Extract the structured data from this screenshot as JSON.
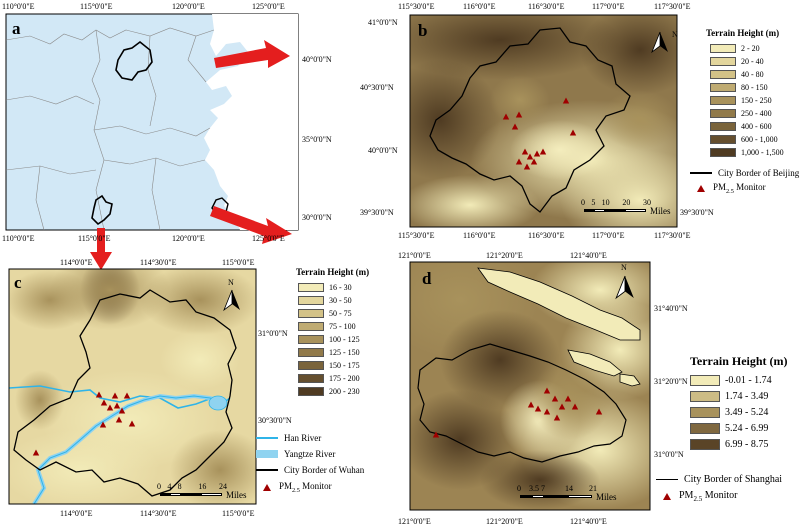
{
  "panel_a": {
    "letter": "a",
    "top_ticks": [
      "110°0'0\"E",
      "115°0'0\"E",
      "120°0'0\"E",
      "125°0'0\"E"
    ],
    "bottom_ticks": [
      "110°0'0\"E",
      "115°0'0\"E",
      "120°0'0\"E",
      "125°0'0\"E"
    ],
    "right_ticks": [
      "40°0'0\"N",
      "35°0'0\"N",
      "30°0'0\"N"
    ]
  },
  "panel_b": {
    "letter": "b",
    "top_ticks": [
      "115°30'0\"E",
      "116°0'0\"E",
      "116°30'0\"E",
      "117°0'0\"E",
      "117°30'0\"E"
    ],
    "bottom_ticks": [
      "115°30'0\"E",
      "116°0'0\"E",
      "116°30'0\"E",
      "117°0'0\"E",
      "117°30'0\"E"
    ],
    "left_ticks": [
      "41°0'0\"N",
      "40°30'0\"N",
      "40°0'0\"N",
      "39°30'0\"N"
    ],
    "right_tick": "39°30'0\"N",
    "legend_title": "Terrain Height (m)",
    "legend": [
      "2 - 20",
      "20 - 40",
      "40 - 80",
      "80 - 150",
      "150 - 250",
      "250 - 400",
      "400 - 600",
      "600 - 1,000",
      "1,000 - 1,500"
    ],
    "legend_colors": [
      "#f2ebb8",
      "#e3d69d",
      "#d3c287",
      "#bfab72",
      "#a8925c",
      "#917a4a",
      "#7a643b",
      "#654f2f",
      "#4f3b22"
    ],
    "city_border": "City Border of Beijing",
    "monitor": "PM2.5 Monitor",
    "scale_labels": [
      "0",
      "5",
      "10",
      "20",
      "30"
    ],
    "scale_unit": "Miles",
    "north": "N"
  },
  "panel_c": {
    "letter": "c",
    "top_ticks": [
      "114°0'0\"E",
      "114°30'0\"E",
      "115°0'0\"E"
    ],
    "bottom_ticks": [
      "114°0'0\"E",
      "114°30'0\"E",
      "115°0'0\"E"
    ],
    "right_ticks": [
      "31°0'0\"N",
      "30°30'0\"N"
    ],
    "legend_title": "Terrain Height (m)",
    "legend": [
      "16 - 30",
      "30 - 50",
      "50 - 75",
      "75 - 100",
      "100 - 125",
      "125 - 150",
      "150 - 175",
      "175 - 200",
      "200 - 230"
    ],
    "legend_colors": [
      "#f2ebb8",
      "#e3d69d",
      "#d3c287",
      "#bfab72",
      "#a8925c",
      "#917a4a",
      "#7a643b",
      "#654f2f",
      "#4f3b22"
    ],
    "han_river": "Han River",
    "yangtze_river": "Yangtze River",
    "city_border": "City Border of Wuhan",
    "monitor": "PM2.5 Monitor",
    "scale_labels": [
      "0",
      "4",
      "8",
      "16",
      "24"
    ],
    "scale_unit": "Miles",
    "north": "N"
  },
  "panel_d": {
    "letter": "d",
    "top_ticks": [
      "121°0'0\"E",
      "121°20'0\"E",
      "121°40'0\"E"
    ],
    "bottom_ticks": [
      "121°0'0\"E",
      "121°20'0\"E",
      "121°40'0\"E"
    ],
    "right_ticks": [
      "31°40'0\"N",
      "31°20'0\"N",
      "31°0'0\"N"
    ],
    "legend_title": "Terrain Height (m)",
    "legend": [
      "-0.01 - 1.74",
      "1.74 - 3.49",
      "3.49 - 5.24",
      "5.24 - 6.99",
      "6.99 - 8.75"
    ],
    "legend_colors": [
      "#f2ebb8",
      "#cdbc85",
      "#a8925c",
      "#7f6840",
      "#5a4427"
    ],
    "city_border": "City Border of Shanghai",
    "monitor": "PM2.5 Monitor",
    "scale_labels": [
      "0",
      "3.5",
      "7",
      "14",
      "21"
    ],
    "scale_unit": "Miles",
    "north": "N"
  }
}
